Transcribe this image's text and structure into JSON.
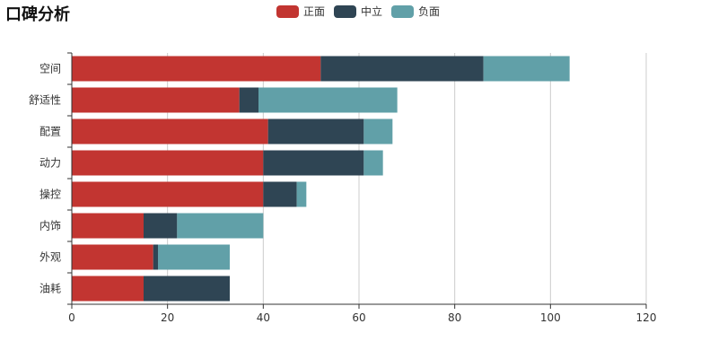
{
  "chart_data": {
    "type": "bar",
    "orientation": "horizontal",
    "stacked": true,
    "title": "口碑分析",
    "categories": [
      "空间",
      "舒适性",
      "配置",
      "动力",
      "操控",
      "内饰",
      "外观",
      "油耗"
    ],
    "series": [
      {
        "name": "正面",
        "color": "#c23531",
        "values": [
          52,
          35,
          41,
          40,
          40,
          15,
          17,
          15
        ]
      },
      {
        "name": "中立",
        "color": "#2f4554",
        "values": [
          34,
          4,
          20,
          21,
          7,
          7,
          1,
          18
        ]
      },
      {
        "name": "负面",
        "color": "#61a0a8",
        "values": [
          18,
          29,
          6,
          4,
          2,
          18,
          15,
          0
        ]
      }
    ],
    "xlim": [
      0,
      120
    ],
    "xticks": [
      "0",
      "20",
      "40",
      "60",
      "80",
      "100",
      "120"
    ],
    "grid": true,
    "legend_position": "top-center"
  }
}
